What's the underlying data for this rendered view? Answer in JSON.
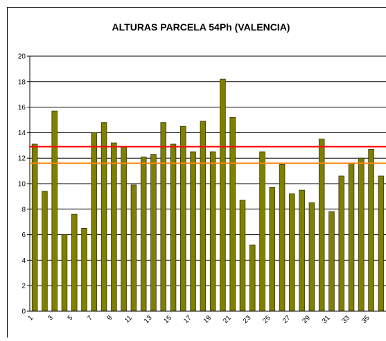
{
  "chart_data": {
    "type": "bar",
    "title": "ALTURAS PARCELA 54Ph (VALENCIA)",
    "categories": [
      "1",
      null,
      "3",
      null,
      "5",
      null,
      "7",
      null,
      "9",
      null,
      "11",
      null,
      "13",
      null,
      "15",
      null,
      "17",
      null,
      "19",
      null,
      "21",
      null,
      "23",
      null,
      "25",
      null,
      "27",
      null,
      "29",
      null,
      "31",
      null,
      "33",
      null,
      "35",
      null
    ],
    "values": [
      13.1,
      9.4,
      15.7,
      6.0,
      7.6,
      6.5,
      14.0,
      14.8,
      13.2,
      12.9,
      9.9,
      12.1,
      12.3,
      14.8,
      13.1,
      14.5,
      12.5,
      14.9,
      12.5,
      18.2,
      15.2,
      8.7,
      5.2,
      12.5,
      9.7,
      11.5,
      9.2,
      9.5,
      8.5,
      13.5,
      7.8,
      10.6,
      11.6,
      12.0,
      12.7,
      10.6
    ],
    "color": "#808000",
    "reference_lines": [
      {
        "value": 12.9,
        "color": "#ff0000"
      },
      {
        "value": 11.6,
        "color": "#ff8000"
      }
    ],
    "ylim": [
      0,
      20
    ],
    "yticks": [
      0,
      2,
      4,
      6,
      8,
      10,
      12,
      14,
      16,
      18,
      20
    ],
    "grid": true
  }
}
